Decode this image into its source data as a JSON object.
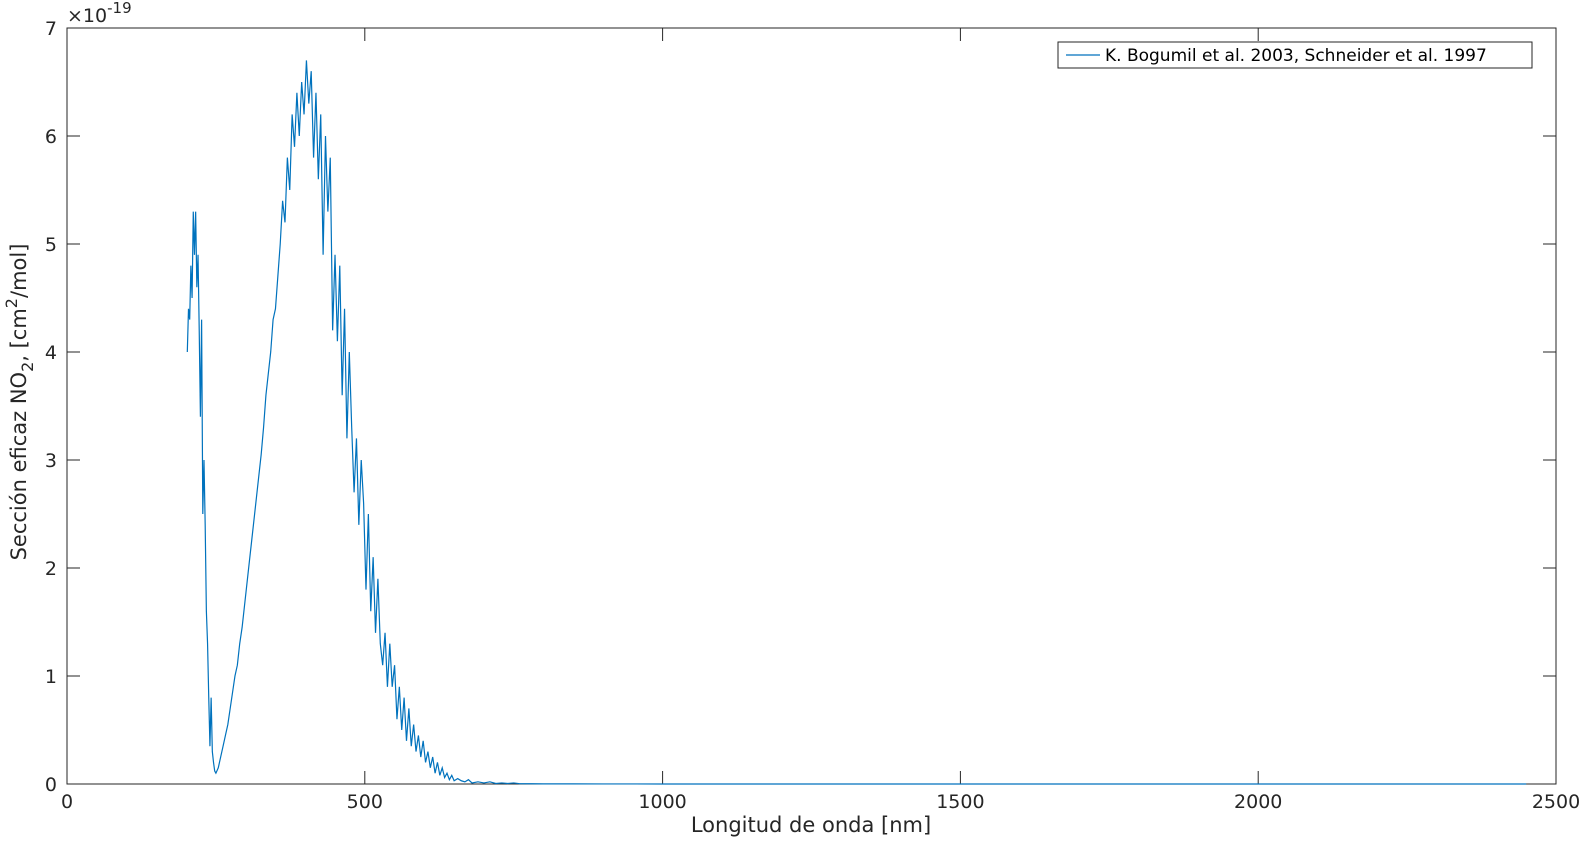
{
  "chart_data": {
    "type": "line",
    "xlabel": "Longitud de onda [nm]",
    "ylabel_main": "Sección eficaz NO",
    "ylabel_sub": "2",
    "ylabel_mid": ", [cm",
    "ylabel_sup": "2",
    "ylabel_end": "/mol]",
    "exponent_prefix": "×10",
    "exponent_power": "-19",
    "xlim": [
      0,
      2500
    ],
    "ylim": [
      0,
      7
    ],
    "xticks": [
      0,
      500,
      1000,
      1500,
      2000,
      2500
    ],
    "yticks": [
      0,
      1,
      2,
      3,
      4,
      5,
      6,
      7
    ],
    "grid": false,
    "legend_position": "top-right",
    "line_color": "#0072BD",
    "series": [
      {
        "name": "K. Bogumil et al. 2003, Schneider et al. 1997",
        "x": [
          202,
          204,
          206,
          208,
          210,
          212,
          214,
          216,
          218,
          220,
          222,
          224,
          226,
          228,
          230,
          232,
          234,
          236,
          238,
          240,
          242,
          244,
          246,
          248,
          250,
          254,
          258,
          262,
          266,
          270,
          274,
          278,
          282,
          286,
          290,
          294,
          298,
          302,
          306,
          310,
          314,
          318,
          322,
          326,
          330,
          334,
          338,
          342,
          346,
          350,
          354,
          358,
          362,
          366,
          370,
          374,
          378,
          382,
          386,
          390,
          394,
          398,
          402,
          406,
          410,
          414,
          418,
          422,
          426,
          430,
          434,
          438,
          442,
          446,
          450,
          454,
          458,
          462,
          466,
          470,
          474,
          478,
          482,
          486,
          490,
          494,
          498,
          502,
          506,
          510,
          514,
          518,
          522,
          526,
          530,
          534,
          538,
          542,
          546,
          550,
          554,
          558,
          562,
          566,
          570,
          574,
          578,
          582,
          586,
          590,
          594,
          598,
          602,
          606,
          610,
          614,
          618,
          622,
          626,
          630,
          634,
          638,
          642,
          646,
          650,
          656,
          662,
          668,
          674,
          680,
          690,
          700,
          710,
          720,
          730,
          740,
          750,
          760,
          780,
          800,
          850,
          900,
          1000,
          1200,
          1500,
          2000,
          2450
        ],
        "values": [
          4.0,
          4.4,
          4.3,
          4.8,
          4.5,
          5.3,
          4.9,
          5.3,
          4.6,
          4.9,
          4.2,
          3.4,
          4.3,
          2.5,
          3.0,
          2.4,
          1.6,
          1.3,
          0.8,
          0.35,
          0.8,
          0.3,
          0.2,
          0.12,
          0.1,
          0.15,
          0.25,
          0.35,
          0.45,
          0.55,
          0.7,
          0.85,
          1.0,
          1.1,
          1.3,
          1.45,
          1.65,
          1.85,
          2.05,
          2.25,
          2.45,
          2.65,
          2.85,
          3.05,
          3.3,
          3.6,
          3.8,
          4.0,
          4.3,
          4.4,
          4.7,
          5.0,
          5.4,
          5.2,
          5.8,
          5.5,
          6.2,
          5.9,
          6.4,
          6.0,
          6.5,
          6.2,
          6.7,
          6.3,
          6.6,
          5.8,
          6.4,
          5.6,
          6.2,
          4.9,
          6.0,
          5.3,
          5.8,
          4.2,
          4.9,
          4.1,
          4.8,
          3.6,
          4.4,
          3.2,
          4.0,
          3.3,
          2.7,
          3.2,
          2.4,
          3.0,
          2.6,
          1.8,
          2.5,
          1.6,
          2.1,
          1.4,
          1.9,
          1.3,
          1.1,
          1.4,
          0.9,
          1.3,
          0.9,
          1.1,
          0.6,
          0.9,
          0.5,
          0.8,
          0.4,
          0.7,
          0.35,
          0.55,
          0.3,
          0.45,
          0.25,
          0.4,
          0.2,
          0.3,
          0.15,
          0.25,
          0.1,
          0.2,
          0.08,
          0.15,
          0.06,
          0.1,
          0.04,
          0.08,
          0.03,
          0.05,
          0.03,
          0.02,
          0.04,
          0.01,
          0.02,
          0.01,
          0.02,
          0.005,
          0.01,
          0.005,
          0.01,
          0.003,
          0.002,
          0.001,
          0.001,
          0.0005,
          0.0003,
          0.0002,
          0.0001,
          0.0001,
          0.0001
        ]
      }
    ]
  }
}
